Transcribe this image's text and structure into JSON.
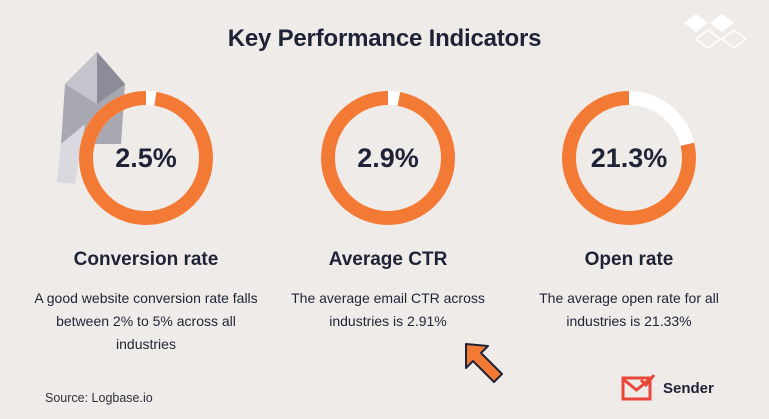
{
  "title": "Key Performance Indicators",
  "colors": {
    "background": "#efebe8",
    "accent": "#f37a35",
    "ring_track": "#ffffff",
    "text": "#1f2337"
  },
  "kpis": [
    {
      "value": "2.5%",
      "fraction": 0.025,
      "label": "Conversion rate",
      "description": "A good website conversion rate falls between 2% to 5% across all industries"
    },
    {
      "value": "2.9%",
      "fraction": 0.029,
      "label": "Average CTR",
      "description": "The average email CTR across industries is 2.91%"
    },
    {
      "value": "21.3%",
      "fraction": 0.213,
      "label": "Open rate",
      "description": "The average open rate for all industries is 21.33%"
    }
  ],
  "source": "Source: Logbase.io",
  "brand": {
    "name": "Sender",
    "icon": "envelope-check-icon"
  },
  "decorations": [
    "envelope-icon",
    "diamond-pattern-icon",
    "cursor-arrow-icon"
  ]
}
